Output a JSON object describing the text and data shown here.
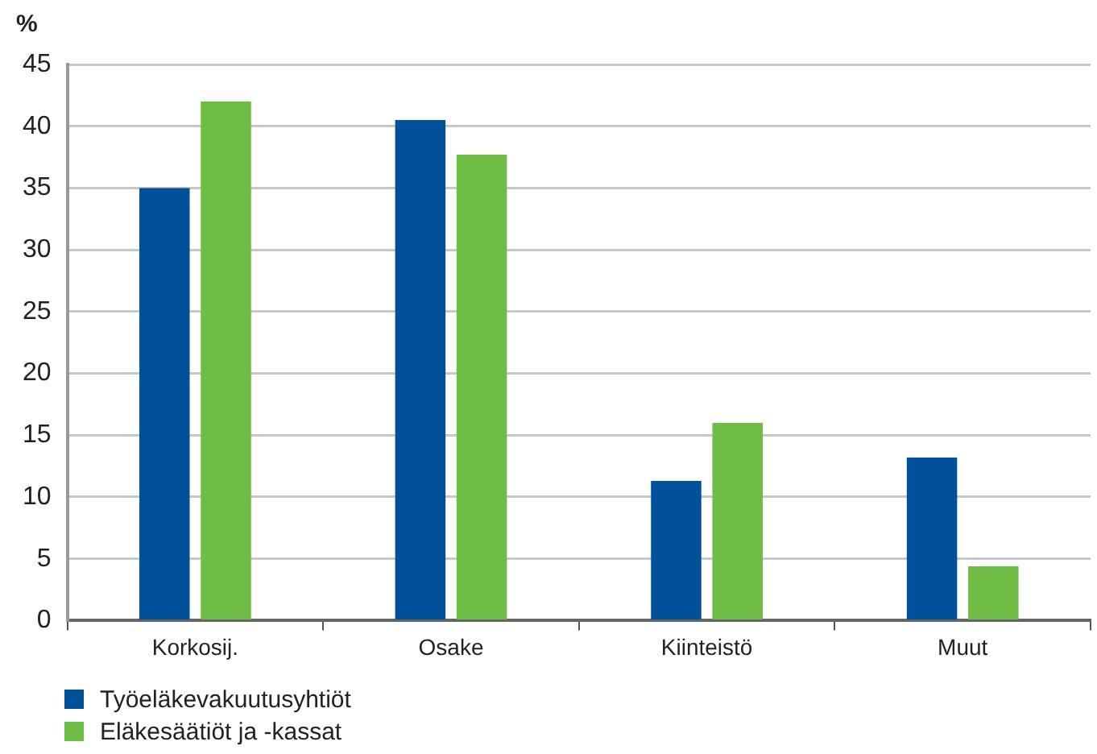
{
  "chart_data": {
    "type": "bar",
    "ylabel": "%",
    "categories": [
      "Korkosij.",
      "Osake",
      "Kiinteistö",
      "Muut"
    ],
    "series": [
      {
        "name": "Työeläkevakuutusyhtiöt",
        "color": "#00519a",
        "values": [
          35,
          40.5,
          11.3,
          13.2
        ]
      },
      {
        "name": "Eläkesäätiöt ja -kassat",
        "color": "#6fbd45",
        "values": [
          42,
          37.7,
          16,
          4.4
        ]
      }
    ],
    "ylim": [
      0,
      45
    ],
    "yticks": [
      0,
      5,
      10,
      15,
      20,
      25,
      30,
      35,
      40,
      45
    ],
    "grid": "y",
    "legend": "bottom left"
  }
}
